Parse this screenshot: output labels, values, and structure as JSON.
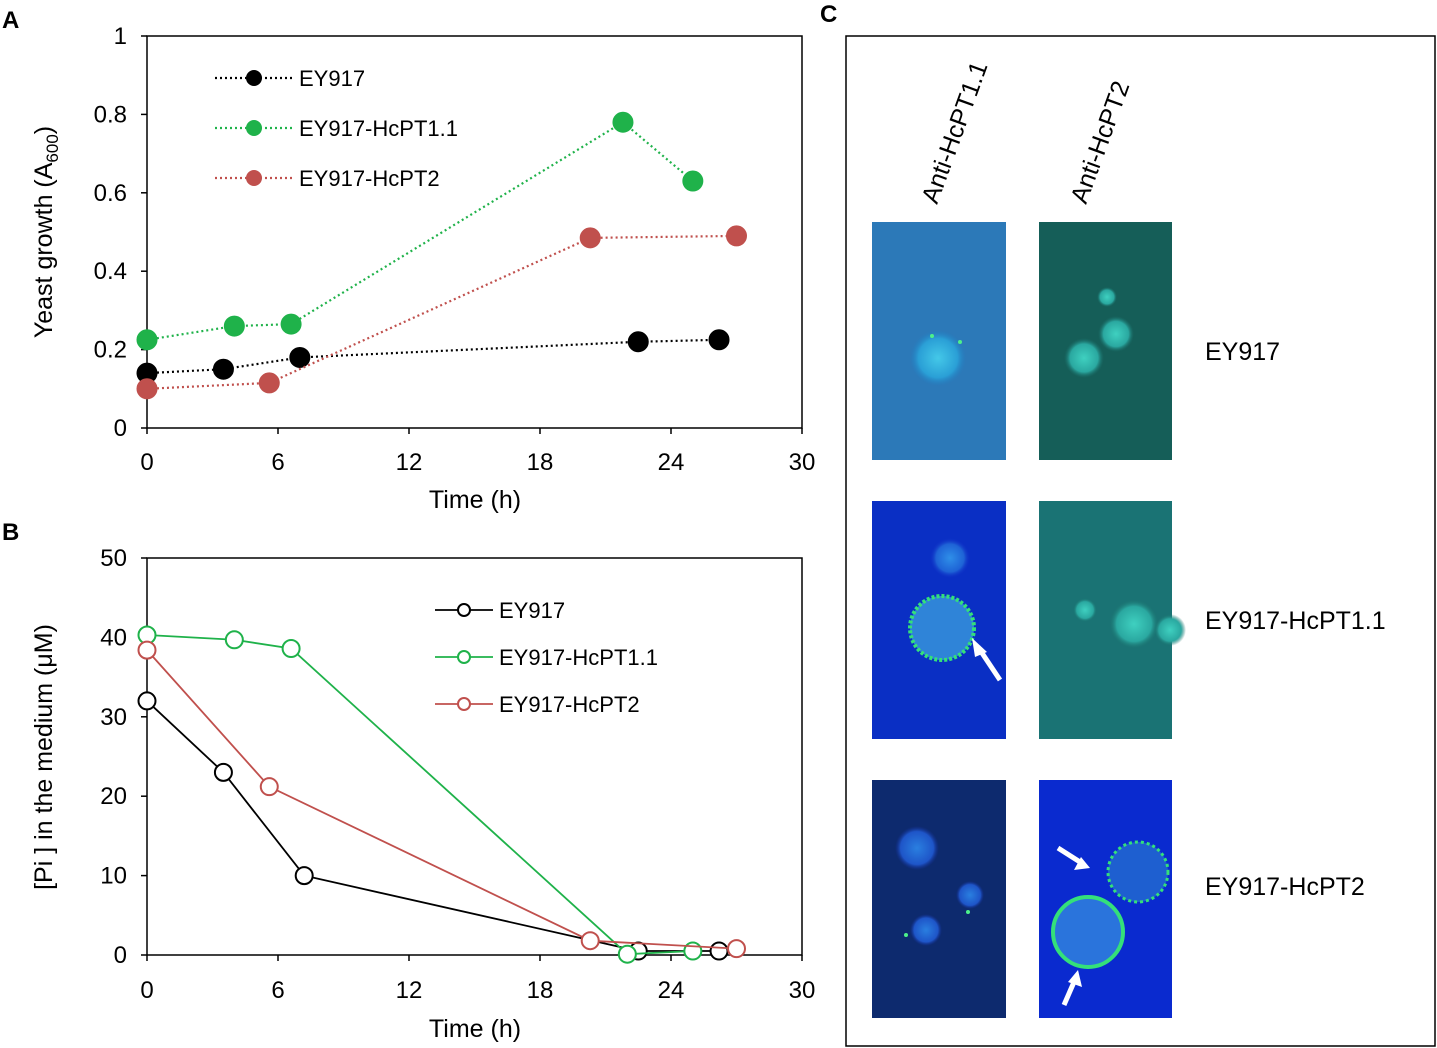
{
  "panel_c": {
    "letter": "C",
    "columns": [
      "Anti-HcPT1.1",
      "Anti-HcPT2"
    ],
    "rows": [
      "EY917",
      "EY917-HcPT1.1",
      "EY917-HcPT2"
    ]
  },
  "chart_data": [
    {
      "panel": "A",
      "type": "line",
      "marker": "filled-circle",
      "line_style": "dotted",
      "title": "",
      "xlabel": "Time (h)",
      "ylabel": "Yeast growth (A600)",
      "ylabel_main": "Yeast growth (A",
      "ylabel_sub": "600",
      "ylabel_end": ")",
      "xlim": [
        0,
        30
      ],
      "ylim": [
        0,
        1
      ],
      "xticks": [
        "0",
        "6",
        "12",
        "18",
        "24",
        "30"
      ],
      "xtick_values": [
        0,
        6,
        12,
        18,
        24,
        30
      ],
      "yticks": [
        "0",
        "0.2",
        "0.4",
        "0.6",
        "0.8",
        "1"
      ],
      "ytick_values": [
        0,
        0.2,
        0.4,
        0.6,
        0.8,
        1
      ],
      "legend_position": "top-left",
      "series": [
        {
          "name": "EY917",
          "color": "#000000",
          "x": [
            0,
            3.5,
            7,
            22.5,
            26.2
          ],
          "y": [
            0.14,
            0.15,
            0.18,
            0.22,
            0.225
          ]
        },
        {
          "name": "EY917-HcPT1.1",
          "color": "#1fb24a",
          "x": [
            0,
            4,
            6.6,
            21.8,
            25
          ],
          "y": [
            0.225,
            0.26,
            0.265,
            0.78,
            0.63
          ]
        },
        {
          "name": "EY917-HcPT2",
          "color": "#c0504d",
          "x": [
            0,
            5.6,
            20.3,
            27
          ],
          "y": [
            0.1,
            0.115,
            0.485,
            0.49
          ]
        }
      ]
    },
    {
      "panel": "B",
      "type": "line",
      "marker": "open-circle",
      "line_style": "solid",
      "title": "",
      "xlabel": "Time (h)",
      "ylabel": "[Pi ] in the medium (μM)",
      "xlim": [
        0,
        30
      ],
      "ylim": [
        0,
        50
      ],
      "xticks": [
        "0",
        "6",
        "12",
        "18",
        "24",
        "30"
      ],
      "xtick_values": [
        0,
        6,
        12,
        18,
        24,
        30
      ],
      "yticks": [
        "0",
        "10",
        "20",
        "30",
        "40",
        "50"
      ],
      "ytick_values": [
        0,
        10,
        20,
        30,
        40,
        50
      ],
      "legend_position": "top-right",
      "series": [
        {
          "name": "EY917",
          "color": "#000000",
          "x": [
            0,
            3.5,
            7.2,
            22.5,
            26.2
          ],
          "y": [
            32,
            23,
            10,
            0.5,
            0.5
          ]
        },
        {
          "name": "EY917-HcPT1.1",
          "color": "#1fb24a",
          "x": [
            0,
            4,
            6.6,
            22,
            25
          ],
          "y": [
            40.3,
            39.7,
            38.6,
            0.1,
            0.5
          ]
        },
        {
          "name": "EY917-HcPT2",
          "color": "#c0504d",
          "x": [
            0,
            5.6,
            20.3,
            27
          ],
          "y": [
            38.4,
            21.2,
            1.8,
            0.8
          ]
        }
      ]
    }
  ]
}
